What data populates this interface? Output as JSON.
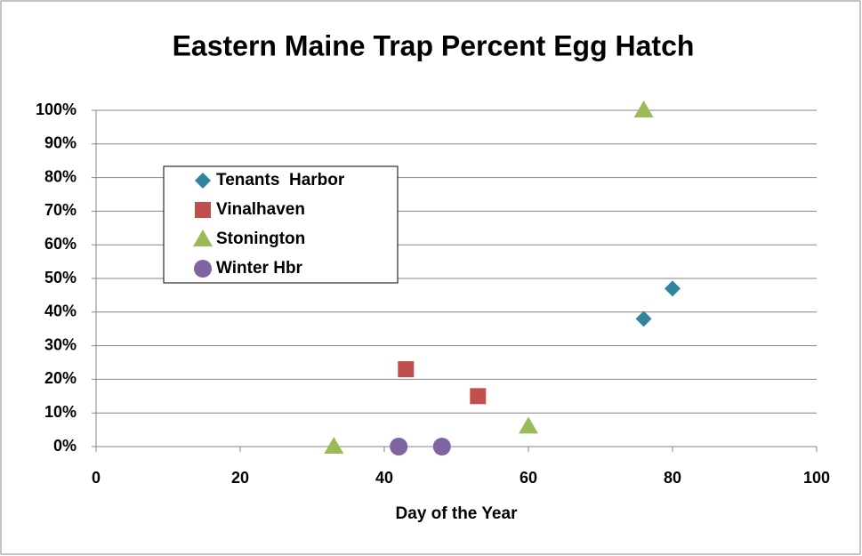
{
  "chart_data": {
    "type": "scatter",
    "title": "Eastern Maine Trap Percent Egg Hatch",
    "x_label": "Day of the Year",
    "xlim": [
      0,
      100
    ],
    "xticks": [
      0,
      20,
      40,
      60,
      80,
      100
    ],
    "ylim": [
      0,
      100
    ],
    "yticks": [
      {
        "value": 0,
        "label": "0%"
      },
      {
        "value": 10,
        "label": "10%"
      },
      {
        "value": 20,
        "label": "20%"
      },
      {
        "value": 30,
        "label": "30%"
      },
      {
        "value": 40,
        "label": "40%"
      },
      {
        "value": 50,
        "label": "50%"
      },
      {
        "value": 60,
        "label": "60%"
      },
      {
        "value": 70,
        "label": "70%"
      },
      {
        "value": 80,
        "label": "80%"
      },
      {
        "value": 90,
        "label": "90%"
      },
      {
        "value": 100,
        "label": "100%"
      }
    ],
    "grid": true,
    "legend": "upper left",
    "series": [
      {
        "name": "Tenants  Harbor",
        "color": "#31859c",
        "marker": "diamond",
        "x": [
          76,
          80
        ],
        "values": [
          38,
          47
        ]
      },
      {
        "name": "Vinalhaven",
        "color": "#c0504d",
        "marker": "square",
        "x": [
          43,
          53
        ],
        "values": [
          23,
          15
        ]
      },
      {
        "name": "Stonington",
        "color": "#9bbb59",
        "marker": "triangle",
        "x": [
          33,
          60,
          76
        ],
        "values": [
          0,
          6,
          100
        ]
      },
      {
        "name": "Winter Hbr",
        "color": "#8064a2",
        "marker": "circle",
        "x": [
          42,
          48
        ],
        "values": [
          0,
          0
        ]
      }
    ]
  }
}
